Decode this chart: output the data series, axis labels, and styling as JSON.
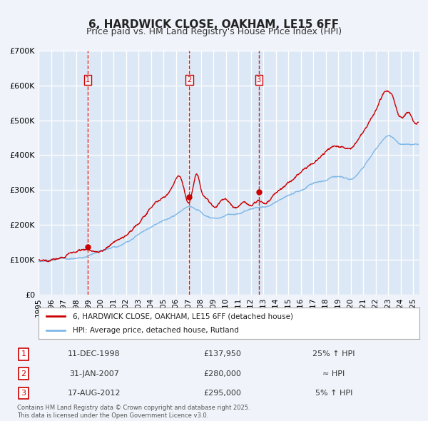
{
  "title": "6, HARDWICK CLOSE, OAKHAM, LE15 6FF",
  "subtitle": "Price paid vs. HM Land Registry's House Price Index (HPI)",
  "xlabel": "",
  "ylabel": "",
  "ylim": [
    0,
    700000
  ],
  "xlim_start": 1995.0,
  "xlim_end": 2025.5,
  "background_color": "#f0f4fa",
  "plot_bg_color": "#dce8f5",
  "grid_color": "#ffffff",
  "red_line_color": "#cc0000",
  "blue_line_color": "#7fb8e8",
  "vline_color": "#cc0000",
  "sale_marker_color": "#cc0000",
  "legend_label_red": "6, HARDWICK CLOSE, OAKHAM, LE15 6FF (detached house)",
  "legend_label_blue": "HPI: Average price, detached house, Rutland",
  "transactions": [
    {
      "num": 1,
      "date": "11-DEC-1998",
      "price": 137950,
      "relation": "25% ↑ HPI",
      "year": 1998.96
    },
    {
      "num": 2,
      "date": "31-JAN-2007",
      "price": 280000,
      "relation": "≈ HPI",
      "year": 2007.08
    },
    {
      "num": 3,
      "date": "17-AUG-2012",
      "price": 295000,
      "relation": "5% ↑ HPI",
      "year": 2012.63
    }
  ],
  "footer_text": "Contains HM Land Registry data © Crown copyright and database right 2025.\nThis data is licensed under the Open Government Licence v3.0.",
  "ytick_labels": [
    "£0",
    "£100K",
    "£200K",
    "£300K",
    "£400K",
    "£500K",
    "£600K",
    "£700K"
  ],
  "ytick_values": [
    0,
    100000,
    200000,
    300000,
    400000,
    500000,
    600000,
    700000
  ],
  "title_fontsize": 11,
  "subtitle_fontsize": 9,
  "tick_fontsize": 8
}
